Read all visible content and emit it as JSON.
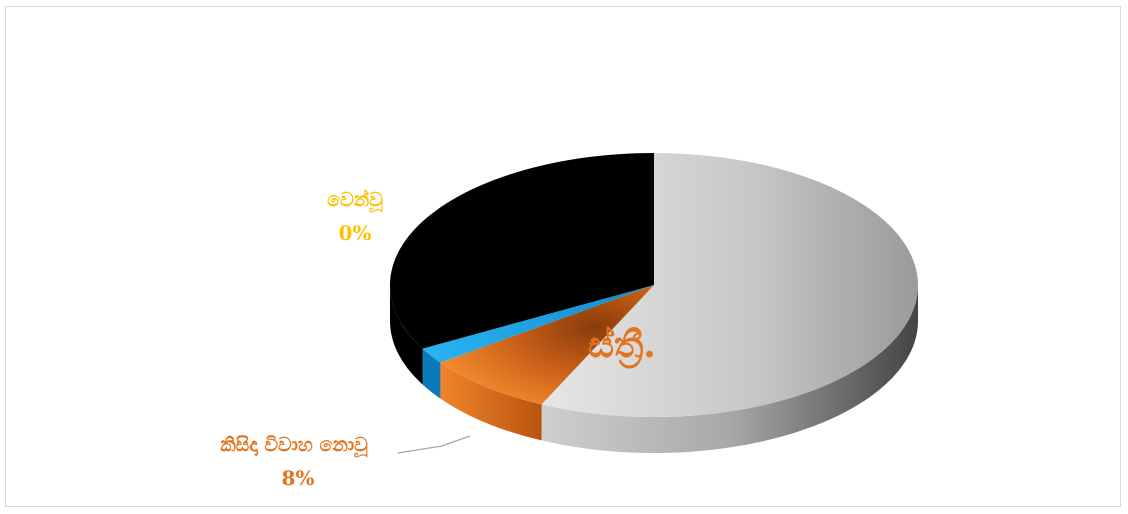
{
  "chart_data": {
    "type": "pie",
    "title": "",
    "center_text": "ස්ත්‍රී.",
    "slices": [
      {
        "label": "",
        "value": 57,
        "color": "#c9c9c9"
      },
      {
        "label": "කිසිදා විවාහ නොවූ",
        "value": 8,
        "value_label": "8%",
        "color": "#e2741f"
      },
      {
        "label": "",
        "value": 2,
        "color": "#18a0e0"
      },
      {
        "label": "වෙන්වූ",
        "value": 0,
        "value_label": "0%",
        "color": "#ffc000"
      },
      {
        "label": "",
        "value": 33,
        "color": "#000000"
      }
    ],
    "legend": "none"
  }
}
